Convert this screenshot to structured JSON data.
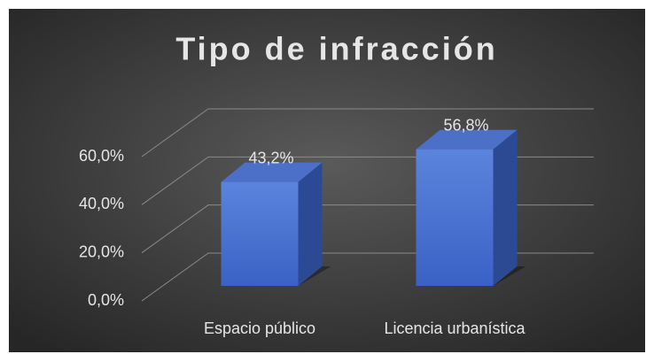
{
  "chart_data": {
    "type": "bar3d",
    "title": "Tipo de infracción",
    "categories": [
      "Espacio público",
      "Licencia urbanística"
    ],
    "values": [
      43.2,
      56.8
    ],
    "value_labels": [
      "43,2%",
      "56,8%"
    ],
    "color": "#4a72d4",
    "ylim": [
      0,
      60
    ],
    "yticks": [
      {
        "value": 0,
        "label": "0,0%"
      },
      {
        "value": 20,
        "label": "20,0%"
      },
      {
        "value": 40,
        "label": "40,0%"
      },
      {
        "value": 60,
        "label": "60,0%"
      }
    ],
    "grid": true
  }
}
